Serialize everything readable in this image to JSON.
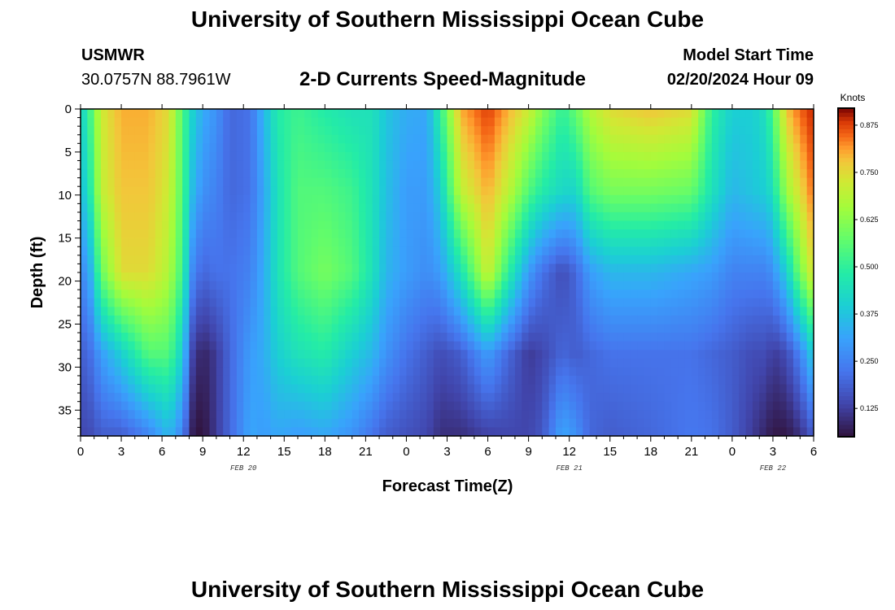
{
  "page": {
    "title": "University of Southern Mississippi Ocean Cube",
    "footer_title": "University of Southern Mississippi Ocean Cube"
  },
  "station": {
    "name": "USMWR",
    "coords": "30.0757N  88.7961W"
  },
  "model": {
    "label": "Model Start Time",
    "start": "02/20/2024 Hour 09"
  },
  "chart_data": {
    "type": "heatmap",
    "title": "2-D Currents Speed-Magnitude",
    "xlabel": "Forecast Time(Z)",
    "ylabel": "Depth (ft)",
    "x_range_hours": [
      0,
      54
    ],
    "ylim": [
      0,
      38
    ],
    "y_inverted": true,
    "x_ticks": [
      {
        "h": 0,
        "label": "0"
      },
      {
        "h": 3,
        "label": "3"
      },
      {
        "h": 6,
        "label": "6"
      },
      {
        "h": 9,
        "label": "9"
      },
      {
        "h": 12,
        "label": "12"
      },
      {
        "h": 15,
        "label": "15"
      },
      {
        "h": 18,
        "label": "18"
      },
      {
        "h": 21,
        "label": "21"
      },
      {
        "h": 24,
        "label": "0"
      },
      {
        "h": 27,
        "label": "3"
      },
      {
        "h": 30,
        "label": "6"
      },
      {
        "h": 33,
        "label": "9"
      },
      {
        "h": 36,
        "label": "12"
      },
      {
        "h": 39,
        "label": "15"
      },
      {
        "h": 42,
        "label": "18"
      },
      {
        "h": 45,
        "label": "21"
      },
      {
        "h": 48,
        "label": "0"
      },
      {
        "h": 51,
        "label": "3"
      },
      {
        "h": 54,
        "label": "6"
      }
    ],
    "date_labels": [
      {
        "h": 12,
        "label": "FEB 20"
      },
      {
        "h": 36,
        "label": "FEB 21"
      },
      {
        "h": 51,
        "label": "FEB 22"
      }
    ],
    "y_ticks": [
      0,
      5,
      10,
      15,
      20,
      25,
      30,
      35
    ],
    "colorbar": {
      "unit": "Knots",
      "min": 0.05,
      "max": 0.92,
      "ticks": [
        "0.125",
        "0.250",
        "0.375",
        "0.500",
        "0.625",
        "0.750",
        "0.875"
      ]
    },
    "depth_fractions": [
      0,
      0.25,
      0.5,
      0.75,
      1
    ],
    "speed_profiles": [
      {
        "h": 0,
        "speeds": [
          0.4,
          0.35,
          0.25,
          0.18,
          0.14
        ]
      },
      {
        "h": 0.8,
        "speeds": [
          0.55,
          0.5,
          0.35,
          0.22,
          0.15
        ]
      },
      {
        "h": 1.5,
        "speeds": [
          0.72,
          0.7,
          0.58,
          0.3,
          0.18
        ]
      },
      {
        "h": 3,
        "speeds": [
          0.8,
          0.78,
          0.75,
          0.4,
          0.18
        ]
      },
      {
        "h": 5,
        "speeds": [
          0.8,
          0.78,
          0.75,
          0.55,
          0.25
        ]
      },
      {
        "h": 6.5,
        "speeds": [
          0.75,
          0.72,
          0.68,
          0.55,
          0.35
        ]
      },
      {
        "h": 7.5,
        "speeds": [
          0.55,
          0.55,
          0.52,
          0.4,
          0.25
        ]
      },
      {
        "h": 8.3,
        "speeds": [
          0.4,
          0.35,
          0.25,
          0.12,
          0.06
        ]
      },
      {
        "h": 9,
        "speeds": [
          0.33,
          0.28,
          0.2,
          0.08,
          0.05
        ]
      },
      {
        "h": 10,
        "speeds": [
          0.28,
          0.25,
          0.22,
          0.12,
          0.12
        ]
      },
      {
        "h": 11,
        "speeds": [
          0.2,
          0.2,
          0.22,
          0.2,
          0.2
        ]
      },
      {
        "h": 12.5,
        "speeds": [
          0.22,
          0.22,
          0.25,
          0.3,
          0.32
        ]
      },
      {
        "h": 13.5,
        "speeds": [
          0.35,
          0.32,
          0.33,
          0.33,
          0.3
        ]
      },
      {
        "h": 14.5,
        "speeds": [
          0.48,
          0.45,
          0.45,
          0.4,
          0.32
        ]
      },
      {
        "h": 16,
        "speeds": [
          0.52,
          0.55,
          0.55,
          0.45,
          0.3
        ]
      },
      {
        "h": 18,
        "speeds": [
          0.48,
          0.55,
          0.6,
          0.48,
          0.32
        ]
      },
      {
        "h": 20,
        "speeds": [
          0.45,
          0.52,
          0.55,
          0.4,
          0.28
        ]
      },
      {
        "h": 21.5,
        "speeds": [
          0.45,
          0.45,
          0.45,
          0.35,
          0.22
        ]
      },
      {
        "h": 22.5,
        "speeds": [
          0.38,
          0.37,
          0.35,
          0.28,
          0.18
        ]
      },
      {
        "h": 24,
        "speeds": [
          0.33,
          0.3,
          0.3,
          0.22,
          0.16
        ]
      },
      {
        "h": 25.5,
        "speeds": [
          0.32,
          0.3,
          0.27,
          0.18,
          0.14
        ]
      },
      {
        "h": 26.5,
        "speeds": [
          0.5,
          0.4,
          0.3,
          0.15,
          0.1
        ]
      },
      {
        "h": 28,
        "speeds": [
          0.8,
          0.7,
          0.45,
          0.18,
          0.1
        ]
      },
      {
        "h": 30,
        "speeds": [
          0.88,
          0.8,
          0.72,
          0.3,
          0.13
        ]
      },
      {
        "h": 31.5,
        "speeds": [
          0.8,
          0.7,
          0.5,
          0.2,
          0.14
        ]
      },
      {
        "h": 33,
        "speeds": [
          0.72,
          0.55,
          0.3,
          0.12,
          0.14
        ]
      },
      {
        "h": 34,
        "speeds": [
          0.62,
          0.48,
          0.22,
          0.14,
          0.17
        ]
      },
      {
        "h": 35.5,
        "speeds": [
          0.5,
          0.42,
          0.15,
          0.2,
          0.32
        ]
      },
      {
        "h": 36.5,
        "speeds": [
          0.58,
          0.42,
          0.2,
          0.18,
          0.28
        ]
      },
      {
        "h": 37.5,
        "speeds": [
          0.68,
          0.55,
          0.3,
          0.2,
          0.2
        ]
      },
      {
        "h": 39,
        "speeds": [
          0.75,
          0.6,
          0.35,
          0.22,
          0.18
        ]
      },
      {
        "h": 42,
        "speeds": [
          0.78,
          0.6,
          0.35,
          0.22,
          0.2
        ]
      },
      {
        "h": 45,
        "speeds": [
          0.75,
          0.58,
          0.32,
          0.22,
          0.23
        ]
      },
      {
        "h": 46.5,
        "speeds": [
          0.5,
          0.45,
          0.3,
          0.2,
          0.22
        ]
      },
      {
        "h": 48,
        "speeds": [
          0.4,
          0.35,
          0.25,
          0.18,
          0.18
        ]
      },
      {
        "h": 49.5,
        "speeds": [
          0.4,
          0.38,
          0.25,
          0.15,
          0.12
        ]
      },
      {
        "h": 50.5,
        "speeds": [
          0.45,
          0.4,
          0.25,
          0.15,
          0.08
        ]
      },
      {
        "h": 51,
        "speeds": [
          0.55,
          0.45,
          0.28,
          0.12,
          0.06
        ]
      },
      {
        "h": 52,
        "speeds": [
          0.78,
          0.65,
          0.4,
          0.15,
          0.06
        ]
      },
      {
        "h": 53,
        "speeds": [
          0.85,
          0.75,
          0.6,
          0.25,
          0.1
        ]
      },
      {
        "h": 54,
        "speeds": [
          0.9,
          0.85,
          0.75,
          0.4,
          0.18
        ]
      }
    ]
  }
}
